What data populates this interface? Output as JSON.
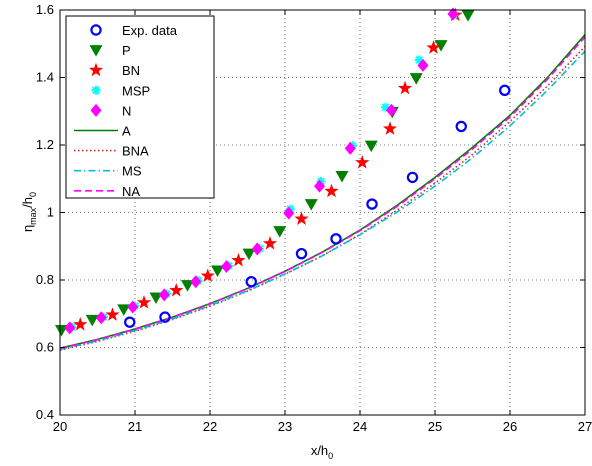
{
  "chart_data": {
    "type": "scatter",
    "title": "",
    "xlabel": "x/h",
    "xlabel_sub": "0",
    "ylabel": "η",
    "ylabel_sub1": "max",
    "ylabel_mid": "/h",
    "ylabel_sub2": "0",
    "xlim": [
      20,
      27
    ],
    "ylim": [
      0.4,
      1.6
    ],
    "xticks": [
      "20",
      "21",
      "22",
      "23",
      "24",
      "25",
      "26",
      "27"
    ],
    "yticks": [
      "0.4",
      "0.6",
      "0.8",
      "1",
      "1.2",
      "1.4",
      "1.6"
    ],
    "grid": true,
    "legend_position": "top-left",
    "series": [
      {
        "name": "Exp. data",
        "kind": "marker",
        "marker": "circle",
        "color": "#0000ff",
        "x": [
          20.93,
          21.4,
          22.55,
          23.22,
          23.68,
          24.16,
          24.7,
          25.35,
          25.93
        ],
        "y": [
          0.675,
          0.69,
          0.795,
          0.878,
          0.922,
          1.025,
          1.104,
          1.255,
          1.362
        ]
      },
      {
        "name": "P",
        "kind": "marker",
        "marker": "triangle-down",
        "color": "#008000",
        "x": [
          20.02,
          20.43,
          20.85,
          21.28,
          21.7,
          22.1,
          22.52,
          22.93,
          23.35,
          23.76,
          24.15,
          24.43,
          24.75,
          25.08,
          25.44
        ],
        "y": [
          0.652,
          0.682,
          0.713,
          0.748,
          0.785,
          0.828,
          0.878,
          0.945,
          1.025,
          1.108,
          1.198,
          1.298,
          1.398,
          1.496,
          1.585
        ]
      },
      {
        "name": "BN",
        "kind": "marker",
        "marker": "star",
        "color": "#ff0000",
        "x": [
          20.27,
          20.7,
          21.12,
          21.55,
          21.97,
          22.38,
          22.8,
          23.22,
          23.62,
          24.03,
          24.4,
          24.6,
          24.98,
          25.27
        ],
        "y": [
          0.668,
          0.697,
          0.733,
          0.769,
          0.812,
          0.858,
          0.908,
          0.981,
          1.063,
          1.148,
          1.248,
          1.368,
          1.488,
          1.585
        ]
      },
      {
        "name": "MSP",
        "kind": "marker",
        "marker": "asterisk",
        "color": "#00ffff",
        "x": [
          20.16,
          20.58,
          21.0,
          21.42,
          21.84,
          22.25,
          22.66,
          23.07,
          23.48,
          23.9,
          24.34,
          24.79,
          25.25
        ],
        "y": [
          0.66,
          0.69,
          0.723,
          0.759,
          0.798,
          0.842,
          0.893,
          1.01,
          1.092,
          1.198,
          1.312,
          1.452,
          1.586
        ]
      },
      {
        "name": "N",
        "kind": "marker",
        "marker": "diamond",
        "color": "#ff00ff",
        "x": [
          20.13,
          20.55,
          20.97,
          21.39,
          21.81,
          22.22,
          22.63,
          23.05,
          23.46,
          23.87,
          24.42,
          24.84,
          25.24
        ],
        "y": [
          0.658,
          0.688,
          0.72,
          0.756,
          0.795,
          0.84,
          0.892,
          0.998,
          1.078,
          1.19,
          1.303,
          1.436,
          1.588
        ]
      },
      {
        "name": "A",
        "kind": "line",
        "dash": "solid",
        "color": "#008000",
        "x": [
          20,
          20.5,
          21,
          21.5,
          22,
          22.5,
          23,
          23.5,
          24,
          24.5,
          25,
          25.5,
          26,
          26.5,
          27
        ],
        "y": [
          0.598,
          0.624,
          0.655,
          0.69,
          0.73,
          0.775,
          0.826,
          0.883,
          0.948,
          1.022,
          1.104,
          1.193,
          1.288,
          1.4,
          1.527
        ]
      },
      {
        "name": "BNA",
        "kind": "line",
        "dash": "dotted",
        "color": "#d62728",
        "x": [
          20,
          20.5,
          21,
          21.5,
          22,
          22.5,
          23,
          23.5,
          24,
          24.5,
          25,
          25.5,
          26,
          26.5,
          27
        ],
        "y": [
          0.592,
          0.618,
          0.648,
          0.683,
          0.722,
          0.767,
          0.817,
          0.872,
          0.935,
          1.008,
          1.087,
          1.172,
          1.27,
          1.375,
          1.492
        ]
      },
      {
        "name": "MS",
        "kind": "line",
        "dash": "dashdot",
        "color": "#00bfd8",
        "x": [
          20,
          20.5,
          21,
          21.5,
          22,
          22.5,
          23,
          23.5,
          24,
          24.5,
          25,
          25.5,
          26,
          26.5,
          27
        ],
        "y": [
          0.594,
          0.62,
          0.65,
          0.685,
          0.724,
          0.768,
          0.818,
          0.872,
          0.934,
          1.002,
          1.078,
          1.162,
          1.257,
          1.362,
          1.478
        ]
      },
      {
        "name": "NA",
        "kind": "line",
        "dash": "dashed",
        "color": "#ff00ff",
        "x": [
          20,
          20.5,
          21,
          21.5,
          22,
          22.5,
          23,
          23.5,
          24,
          24.5,
          25,
          25.5,
          26,
          26.5,
          27
        ],
        "y": [
          0.597,
          0.623,
          0.654,
          0.689,
          0.729,
          0.774,
          0.825,
          0.882,
          0.946,
          1.019,
          1.1,
          1.188,
          1.283,
          1.395,
          1.52
        ]
      }
    ]
  }
}
